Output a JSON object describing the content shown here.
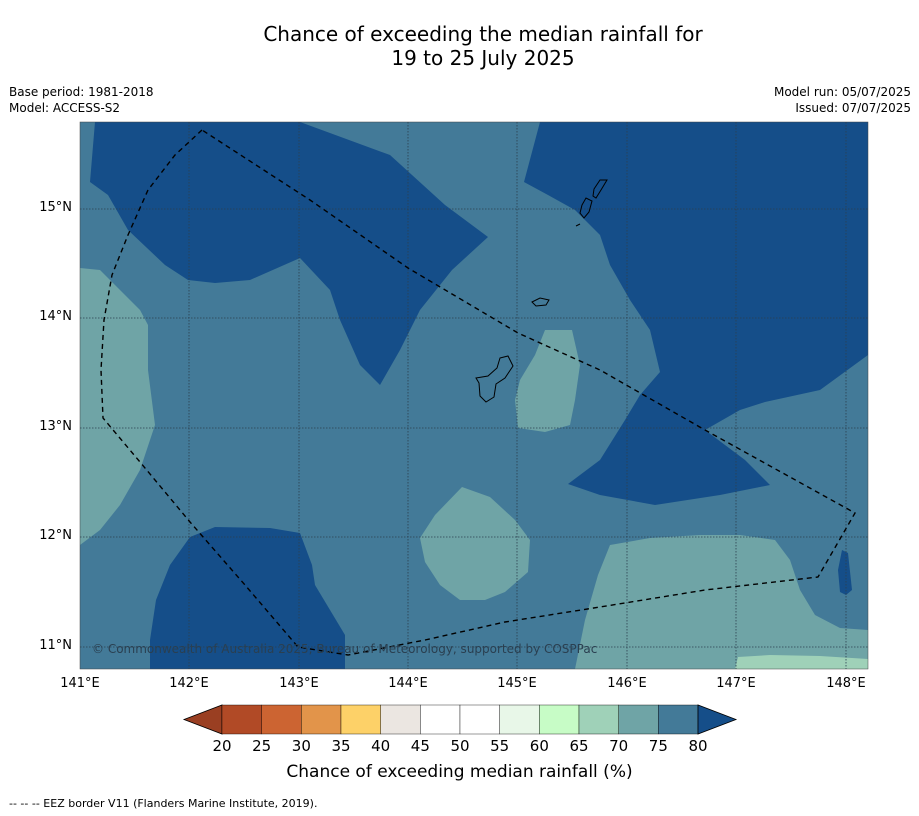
{
  "title_line1": "Chance of exceeding the median rainfall for",
  "title_line2": "19 to 25 July 2025",
  "meta": {
    "base_period": "Base period: 1981-2018",
    "model": "Model: ACCESS-S2",
    "model_run": "Model run: 05/07/2025",
    "issued": "Issued: 07/07/2025"
  },
  "axes": {
    "lon_labels": [
      "141°E",
      "142°E",
      "143°E",
      "144°E",
      "145°E",
      "146°E",
      "147°E",
      "148°E"
    ],
    "lat_labels": [
      "15°N",
      "14°N",
      "13°N",
      "12°N",
      "11°N"
    ]
  },
  "copyright": "© Commonwealth of Australia 2025, Bureau of Meteorology, supported by COSPPac",
  "colorbar": {
    "ticks": [
      "20",
      "25",
      "30",
      "35",
      "40",
      "45",
      "50",
      "55",
      "60",
      "65",
      "70",
      "75",
      "80"
    ],
    "colors": [
      "#b14a26",
      "#cc6432",
      "#e2944a",
      "#fdd168",
      "#ebe6e1",
      "#ffffff",
      "#ffffff",
      "#e8f7e8",
      "#c7fcc6",
      "#9fd1b8",
      "#6fa4a6",
      "#437a98"
    ],
    "under_color": "#9a3f22",
    "over_color": "#154e89",
    "label": "Chance of exceeding median rainfall (%)"
  },
  "legend": "-- -- -- EEZ border V11 (Flanders Marine Institute, 2019)."
}
